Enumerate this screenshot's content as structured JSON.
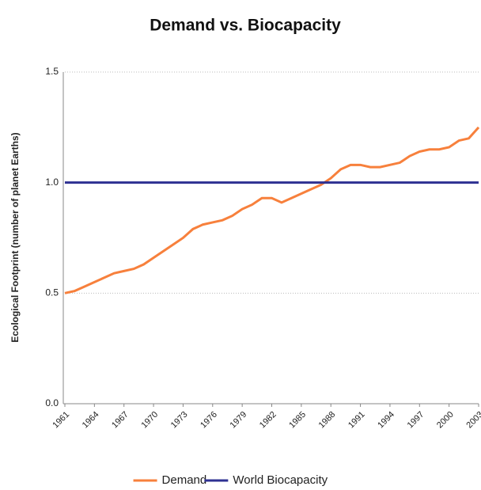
{
  "chart_data": {
    "type": "line",
    "title": "Demand vs. Biocapacity",
    "y_label": "Ecological Footprint (number of planet Earths)",
    "categories": [
      "1961",
      null,
      null,
      "1964",
      null,
      null,
      "1967",
      null,
      null,
      "1970",
      null,
      null,
      "1973",
      null,
      null,
      "1976",
      null,
      null,
      "1979",
      null,
      null,
      "1982",
      null,
      null,
      "1985",
      null,
      null,
      "1988",
      null,
      null,
      "1991",
      null,
      null,
      "1994",
      null,
      null,
      "1997",
      null,
      null,
      "2000",
      null,
      null,
      "2003"
    ],
    "series": [
      {
        "name": "Demand",
        "color": "#f7803c",
        "values": [
          0.5,
          0.51,
          0.53,
          0.55,
          0.57,
          0.59,
          0.6,
          0.61,
          0.63,
          0.66,
          0.69,
          0.72,
          0.75,
          0.79,
          0.81,
          0.82,
          0.83,
          0.85,
          0.88,
          0.9,
          0.93,
          0.93,
          0.91,
          0.93,
          0.95,
          0.97,
          0.99,
          1.02,
          1.06,
          1.08,
          1.08,
          1.07,
          1.07,
          1.08,
          1.09,
          1.12,
          1.14,
          1.15,
          1.15,
          1.16,
          1.19,
          1.2,
          1.25
        ]
      },
      {
        "name": "World Biocapacity",
        "color": "#2e3192",
        "values": [
          1,
          1,
          1,
          1,
          1,
          1,
          1,
          1,
          1,
          1,
          1,
          1,
          1,
          1,
          1,
          1,
          1,
          1,
          1,
          1,
          1,
          1,
          1,
          1,
          1,
          1,
          1,
          1,
          1,
          1,
          1,
          1,
          1,
          1,
          1,
          1,
          1,
          1,
          1,
          1,
          1,
          1,
          1
        ]
      }
    ],
    "ylim": [
      0,
      1.5
    ],
    "yticks": [
      {
        "value": 0,
        "label": "0.0"
      },
      0.5,
      {
        "value": 1,
        "label": "1.0"
      },
      1.5
    ],
    "grid": true,
    "legend": "bottom"
  }
}
